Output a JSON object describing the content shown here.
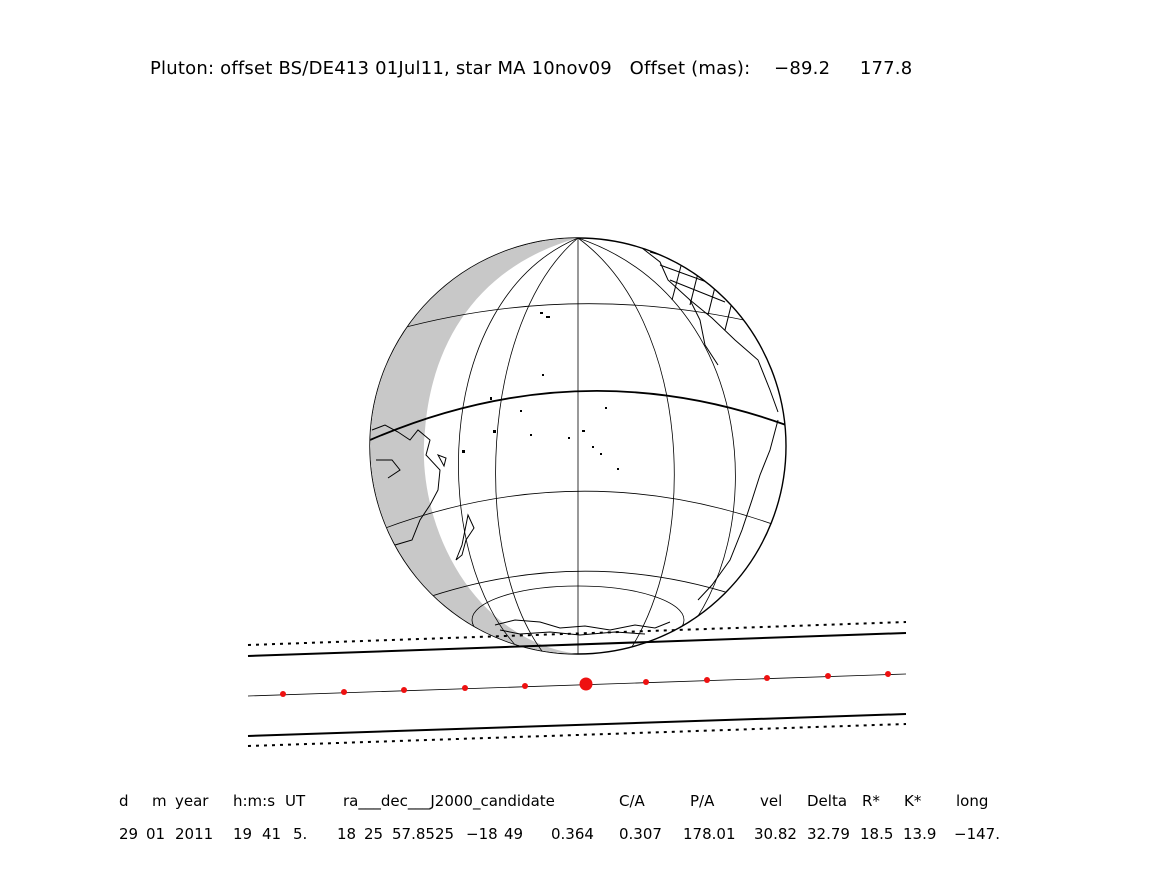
{
  "title": "Pluton: offset BS/DE413 01Jul11, star MA 10nov09   Offset (mas):    −89.2     177.8",
  "colors": {
    "track_dot": "#ee1111",
    "shadow_band": "#000000",
    "twilight_shade": "#c8c8c8",
    "coastline": "#000000"
  },
  "table": {
    "headers": [
      "d",
      "m",
      "year",
      "h:m:s",
      "UT",
      "ra___dec___J2000_candidate",
      "C/A",
      "P/A",
      "vel",
      "Delta",
      "R*",
      "K*",
      "long"
    ],
    "values": [
      "29",
      "01",
      "2011",
      "19",
      "41",
      "5.",
      "18",
      "25",
      "57.8525",
      "−18",
      "49",
      "0.364",
      "0.307",
      "178.01",
      "30.82",
      "32.79",
      "18.5",
      "13.9",
      "−147."
    ]
  }
}
